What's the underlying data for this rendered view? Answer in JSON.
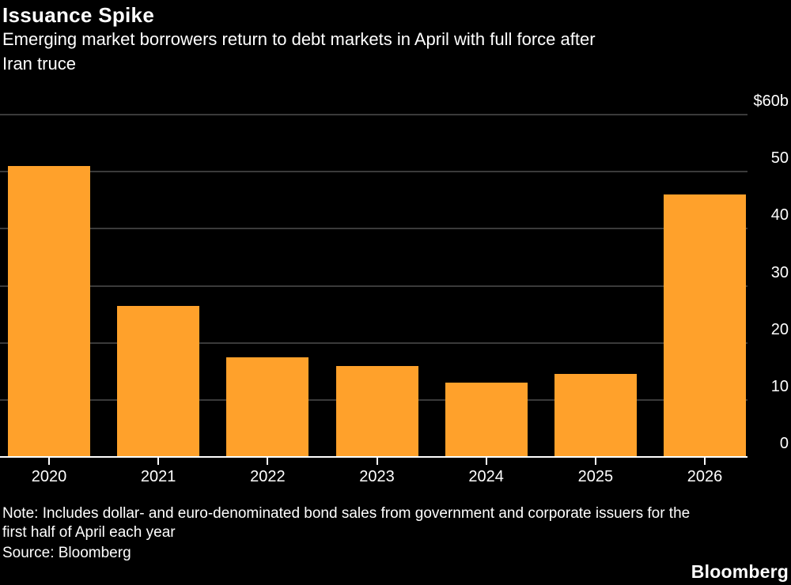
{
  "header": {
    "title": "Issuance Spike",
    "subtitle_lines": [
      "Emerging market borrowers return to debt markets in April with full force after",
      "Iran truce"
    ]
  },
  "chart_data": {
    "type": "bar",
    "title": "Issuance Spike",
    "subtitle": "Emerging market borrowers return to debt markets in April with full force after Iran truce",
    "categories": [
      "2020",
      "2021",
      "2022",
      "2023",
      "2024",
      "2025",
      "2026"
    ],
    "values": [
      51,
      26.5,
      17.5,
      16,
      13,
      14.5,
      46
    ],
    "unit": "$ billions",
    "xlabel": "",
    "ylabel": "$60b",
    "ylim": [
      0,
      60
    ],
    "yticks": [
      0,
      10,
      20,
      30,
      40,
      50,
      60
    ],
    "ytick_labels": [
      "0",
      "10",
      "20",
      "30",
      "40",
      "50",
      "$60b"
    ],
    "grid": true,
    "legend": "none",
    "bar_color": "#FFA12B",
    "gridline_color": "#3A3A3A",
    "axis_color": "#FFFFFF",
    "background_color": "#000000",
    "text_color": "#FFFFFF"
  },
  "footer": {
    "note_lines": [
      "Note: Includes dollar- and euro-denominated bond sales from government and corporate issuers for the",
      "first half of April each year"
    ],
    "source": "Source: Bloomberg",
    "brand": "Bloomberg"
  }
}
